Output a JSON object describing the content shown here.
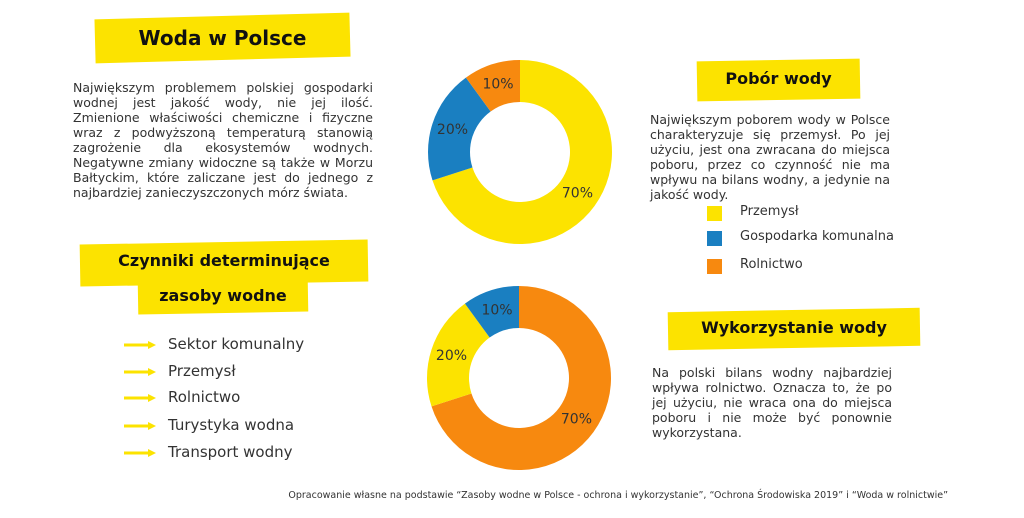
{
  "header": {
    "title": "Woda w Polsce"
  },
  "intro": "Największym problemem polskiej gospodarki wodnej jest jakość wody, nie jej ilość. Zmienione właściwości chemiczne i fizyczne wraz z podwyższoną temperaturą stanowią zagrożenie dla ekosystemów wodnych. Negatywne zmiany widoczne są także w Morzu Bałtyckim, które zaliczane jest do jednego z najbardziej zanieczyszczonych mórz świata.",
  "factors": {
    "title_line1": "Czynniki determinujące",
    "title_line2": "zasoby wodne",
    "items": [
      "Sektor komunalny",
      "Przemysł",
      "Rolnictwo",
      "Turystyka wodna",
      "Transport wodny"
    ]
  },
  "intake": {
    "title": "Pobór wody",
    "text": "Największym poborem wody w Polsce charakteryzuje się przemysł. Po jej użyciu, jest ona zwracana do miejsca poboru, przez co czynność nie ma wpływu na bilans wodny, a jedynie na jakość wody."
  },
  "legend": [
    {
      "label": "Przemysł",
      "color": "#fce300"
    },
    {
      "label": "Gospodarka komunalna",
      "color": "#1a7fc1"
    },
    {
      "label": "Rolnictwo",
      "color": "#f7890f"
    }
  ],
  "usage": {
    "title": "Wykorzystanie wody",
    "text": "Na polski bilans wodny najbardziej wpływa rolnictwo. Oznacza to, że po jej użyciu, nie wraca ona do miejsca poboru i nie może być ponownie wykorzystana."
  },
  "footer": "Opracowanie własne na podstawie “Zasoby wodne w Polsce - ochrona i wykorzystanie”, “Ochrona Środowiska 2019” i “Woda w rolnictwie”",
  "chart_data": [
    {
      "type": "donut",
      "values": [
        70,
        20,
        10
      ],
      "value_labels": [
        "70%",
        "20%",
        "10%"
      ],
      "colors": [
        "#fce300",
        "#1a7fc1",
        "#f7890f"
      ]
    },
    {
      "type": "donut",
      "values": [
        70,
        20,
        10
      ],
      "value_labels": [
        "70%",
        "20%",
        "10%"
      ],
      "colors": [
        "#f7890f",
        "#fce300",
        "#1a7fc1"
      ]
    }
  ]
}
